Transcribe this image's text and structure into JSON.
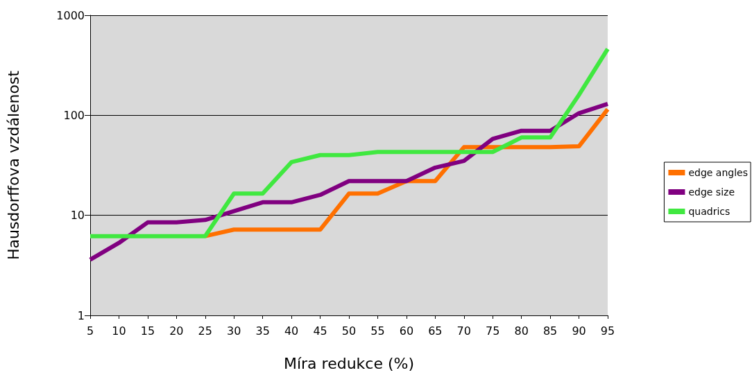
{
  "chart_data": {
    "type": "line",
    "xlabel": "Míra redukce (%)",
    "ylabel": "Hausdorffova vzdálenost",
    "log": "y",
    "grid": "y",
    "legend": "right",
    "marker": "none",
    "line_style": "solid",
    "x": [
      5,
      10,
      15,
      20,
      25,
      30,
      35,
      40,
      45,
      50,
      55,
      60,
      65,
      70,
      75,
      80,
      85,
      90,
      95
    ],
    "xlim": [
      5,
      95
    ],
    "xticks": [
      5,
      10,
      15,
      20,
      25,
      30,
      35,
      40,
      45,
      50,
      55,
      60,
      65,
      70,
      75,
      80,
      85,
      90,
      95
    ],
    "ylim": [
      1,
      1000
    ],
    "yticks": [
      1,
      10,
      100,
      1000
    ],
    "series": [
      {
        "name": "edge angles",
        "color": "#ff7000",
        "values": [
          null,
          null,
          null,
          null,
          6.2,
          7.2,
          7.2,
          7.2,
          7.2,
          16.5,
          16.5,
          22,
          22,
          48,
          48,
          48,
          48,
          49,
          115
        ]
      },
      {
        "name": "edge size",
        "color": "#800080",
        "values": [
          3.6,
          5.3,
          8.5,
          8.5,
          9,
          11,
          13.5,
          13.5,
          16,
          22,
          22,
          22,
          30,
          35,
          58,
          70,
          70,
          105,
          130
        ]
      },
      {
        "name": "quadrics",
        "color": "#40e840",
        "values": [
          6.2,
          6.2,
          6.2,
          6.2,
          6.2,
          16.5,
          16.5,
          34,
          40,
          40,
          43,
          43,
          43,
          43,
          43,
          60,
          60,
          160,
          460
        ]
      }
    ]
  }
}
